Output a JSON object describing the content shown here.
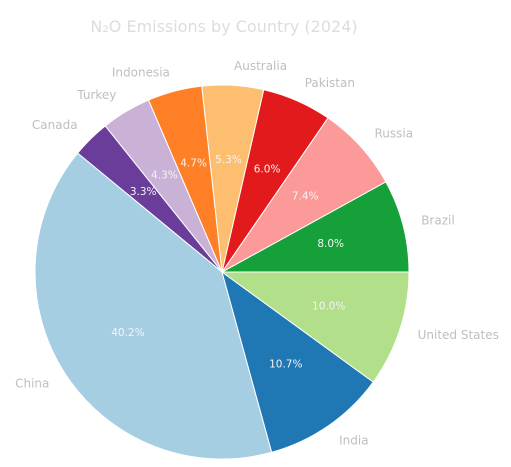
{
  "chart_data": {
    "type": "pie",
    "title": "N₂O Emissions by Country (2024)",
    "start_angle_deg": 0,
    "direction": "counterclockwise",
    "slices": [
      {
        "label": "Brazil",
        "value": 8.0,
        "pct_label": "8.0%",
        "color": "#16a03a"
      },
      {
        "label": "Russia",
        "value": 7.4,
        "pct_label": "7.4%",
        "color": "#fb9a99"
      },
      {
        "label": "Pakistan",
        "value": 6.0,
        "pct_label": "6.0%",
        "color": "#e31a1c"
      },
      {
        "label": "Australia",
        "value": 5.3,
        "pct_label": "5.3%",
        "color": "#fdbf6f"
      },
      {
        "label": "Indonesia",
        "value": 4.7,
        "pct_label": "4.7%",
        "color": "#ff7f27"
      },
      {
        "label": "Turkey",
        "value": 4.3,
        "pct_label": "4.3%",
        "color": "#cab2d6"
      },
      {
        "label": "Canada",
        "value": 3.3,
        "pct_label": "3.3%",
        "color": "#6a3d9a"
      },
      {
        "label": "China",
        "value": 40.2,
        "pct_label": "40.2%",
        "color": "#a6cee3"
      },
      {
        "label": "India",
        "value": 10.7,
        "pct_label": "10.7%",
        "color": "#1f78b4"
      },
      {
        "label": "United States",
        "value": 10.0,
        "pct_label": "10.0%",
        "color": "#b2df8a"
      }
    ]
  }
}
